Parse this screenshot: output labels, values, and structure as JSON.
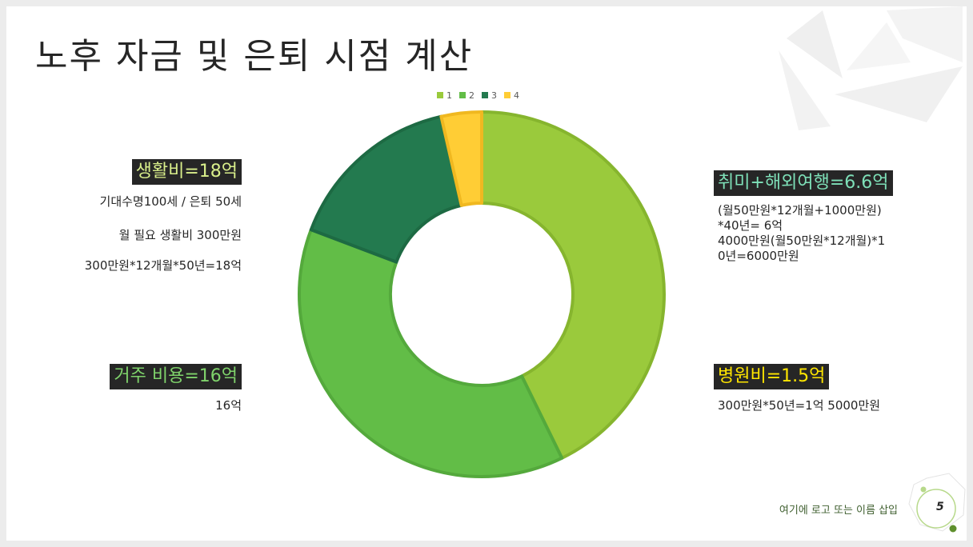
{
  "slide": {
    "title": "노후 자금 및 은퇴 시점 계산",
    "footer": "여기에 로고 또는 이름 삽입",
    "page_number": "5"
  },
  "blocks": {
    "living": {
      "label": "생활비=18억",
      "label_color": "#d9ef8b",
      "lines": [
        "기대수명100세 / 은퇴 50세",
        "월 필요 생활비 300만원",
        "300만원*12개월*50년=18억"
      ]
    },
    "housing": {
      "label": "거주 비용=16억",
      "label_color": "#7fd36b",
      "lines": [
        "16억"
      ]
    },
    "hobby": {
      "label": "취미+해외여행=6.6억",
      "label_color": "#7ee0b8",
      "lines": [
        "(월50만원*12개월+1000만원)",
        "*40년=  6억",
        "4000만원(월50만원*12개월)*1",
        "0년=6000만원"
      ]
    },
    "hospital": {
      "label": "병원비=1.5억",
      "label_color": "#ffe600",
      "lines": [
        "300만원*50년=1억  5000만원"
      ]
    }
  },
  "chart_data": {
    "type": "pie",
    "donut": true,
    "legend_position": "top",
    "categories": [
      "1",
      "2",
      "3",
      "4"
    ],
    "values": [
      18,
      16,
      6.6,
      1.5
    ],
    "colors": [
      "#9aca3c",
      "#62bd47",
      "#237a4f",
      "#ffcd35"
    ],
    "border_colors": [
      "#86b52e",
      "#54a93c",
      "#1d6a43",
      "#f0b820"
    ]
  }
}
